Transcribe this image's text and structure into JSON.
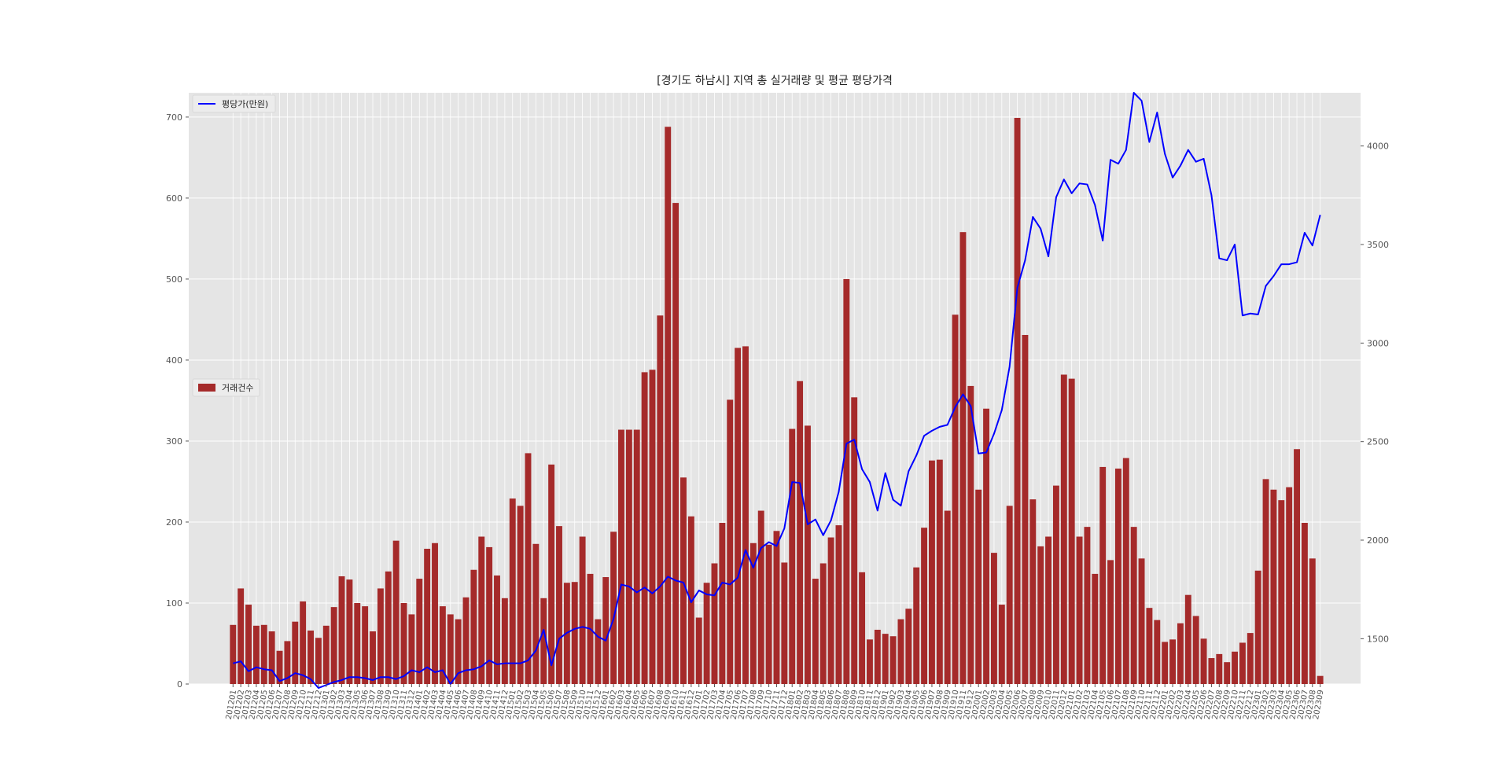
{
  "chart_data": {
    "type": "bar+line",
    "title": "[경기도 하남시] 지역 총 실거래량 및 평균 평당가격",
    "xlabel": "",
    "ylabel_left": "",
    "ylabel_right": "",
    "ylim_left": [
      0,
      730
    ],
    "ylim_right": [
      1270,
      4270
    ],
    "yticks_left": [
      0,
      100,
      200,
      300,
      400,
      500,
      600,
      700
    ],
    "yticks_right": [
      1500,
      2000,
      2500,
      3000,
      3500,
      4000
    ],
    "grid": true,
    "categories": [
      "201201",
      "201202",
      "201203",
      "201204",
      "201205",
      "201206",
      "201207",
      "201208",
      "201209",
      "201210",
      "201211",
      "201212",
      "201301",
      "201302",
      "201303",
      "201304",
      "201305",
      "201306",
      "201307",
      "201308",
      "201309",
      "201310",
      "201311",
      "201312",
      "201401",
      "201402",
      "201403",
      "201404",
      "201405",
      "201406",
      "201407",
      "201408",
      "201409",
      "201410",
      "201411",
      "201412",
      "201501",
      "201502",
      "201503",
      "201504",
      "201505",
      "201506",
      "201507",
      "201508",
      "201509",
      "201510",
      "201511",
      "201512",
      "201601",
      "201602",
      "201603",
      "201604",
      "201605",
      "201606",
      "201607",
      "201608",
      "201609",
      "201610",
      "201611",
      "201612",
      "201701",
      "201702",
      "201703",
      "201704",
      "201705",
      "201706",
      "201707",
      "201708",
      "201709",
      "201710",
      "201711",
      "201712",
      "201801",
      "201802",
      "201803",
      "201804",
      "201805",
      "201806",
      "201807",
      "201808",
      "201809",
      "201810",
      "201811",
      "201812",
      "201901",
      "201902",
      "201903",
      "201904",
      "201905",
      "201906",
      "201907",
      "201908",
      "201909",
      "201910",
      "201911",
      "201912",
      "202001",
      "202002",
      "202003",
      "202004",
      "202005",
      "202006",
      "202007",
      "202008",
      "202009",
      "202010",
      "202011",
      "202012",
      "202101",
      "202102",
      "202103",
      "202104",
      "202105",
      "202106",
      "202107",
      "202108",
      "202109",
      "202110",
      "202111",
      "202112",
      "202201",
      "202202",
      "202203",
      "202204",
      "202205",
      "202206",
      "202207",
      "202208",
      "202209",
      "202210",
      "202211",
      "202212",
      "202301",
      "202302",
      "202303",
      "202304",
      "202305",
      "202306",
      "202307",
      "202308",
      "202309"
    ],
    "series": [
      {
        "name": "거래건수",
        "type": "bar",
        "axis": "left",
        "color": "#a52a2a",
        "legend_position": "center-left",
        "values": [
          73,
          118,
          98,
          72,
          73,
          65,
          41,
          53,
          77,
          102,
          66,
          57,
          72,
          95,
          133,
          129,
          100,
          96,
          65,
          118,
          139,
          177,
          100,
          86,
          130,
          167,
          174,
          96,
          86,
          80,
          107,
          141,
          182,
          169,
          134,
          106,
          229,
          220,
          285,
          173,
          106,
          271,
          195,
          125,
          126,
          182,
          136,
          80,
          132,
          188,
          314,
          314,
          314,
          385,
          388,
          455,
          688,
          594,
          255,
          207,
          82,
          125,
          149,
          199,
          351,
          415,
          417,
          174,
          214,
          172,
          189,
          150,
          315,
          374,
          319,
          130,
          149,
          181,
          196,
          500,
          354,
          138,
          55,
          67,
          62,
          59,
          80,
          93,
          144,
          193,
          276,
          277,
          214,
          456,
          558,
          368,
          240,
          340,
          162,
          98,
          220,
          699,
          431,
          228,
          170,
          182,
          245,
          382,
          377,
          182,
          194,
          136,
          268,
          153,
          266,
          279,
          194,
          155,
          94,
          79,
          52,
          55,
          75,
          110,
          84,
          56,
          32,
          37,
          27,
          40,
          51,
          63,
          140,
          253,
          240,
          227,
          243,
          290,
          199,
          155,
          10
        ]
      },
      {
        "name": "평당가(만원)",
        "type": "line",
        "axis": "right",
        "color": "#0000ff",
        "legend_position": "top-left",
        "values": [
          1375,
          1385,
          1335,
          1355,
          1345,
          1340,
          1285,
          1300,
          1325,
          1315,
          1295,
          1250,
          1265,
          1280,
          1290,
          1305,
          1305,
          1300,
          1290,
          1305,
          1305,
          1295,
          1310,
          1340,
          1330,
          1355,
          1330,
          1340,
          1270,
          1325,
          1340,
          1345,
          1360,
          1390,
          1370,
          1375,
          1375,
          1375,
          1390,
          1440,
          1545,
          1365,
          1500,
          1530,
          1550,
          1560,
          1550,
          1510,
          1490,
          1600,
          1775,
          1765,
          1735,
          1760,
          1730,
          1765,
          1815,
          1795,
          1785,
          1685,
          1745,
          1725,
          1720,
          1785,
          1775,
          1810,
          1950,
          1860,
          1960,
          1990,
          1970,
          2060,
          2295,
          2290,
          2080,
          2105,
          2025,
          2100,
          2245,
          2490,
          2510,
          2360,
          2295,
          2150,
          2340,
          2205,
          2175,
          2350,
          2430,
          2530,
          2555,
          2575,
          2585,
          2675,
          2740,
          2680,
          2440,
          2445,
          2540,
          2660,
          2880,
          3280,
          3420,
          3640,
          3580,
          3440,
          3740,
          3830,
          3760,
          3810,
          3805,
          3700,
          3520,
          3930,
          3910,
          3980,
          4270,
          4230,
          4020,
          4170,
          3960,
          3840,
          3900,
          3980,
          3920,
          3935,
          3750,
          3430,
          3420,
          3500,
          3140,
          3150,
          3145,
          3290,
          3340,
          3400,
          3400,
          3410,
          3560,
          3495,
          3650
        ]
      }
    ]
  }
}
